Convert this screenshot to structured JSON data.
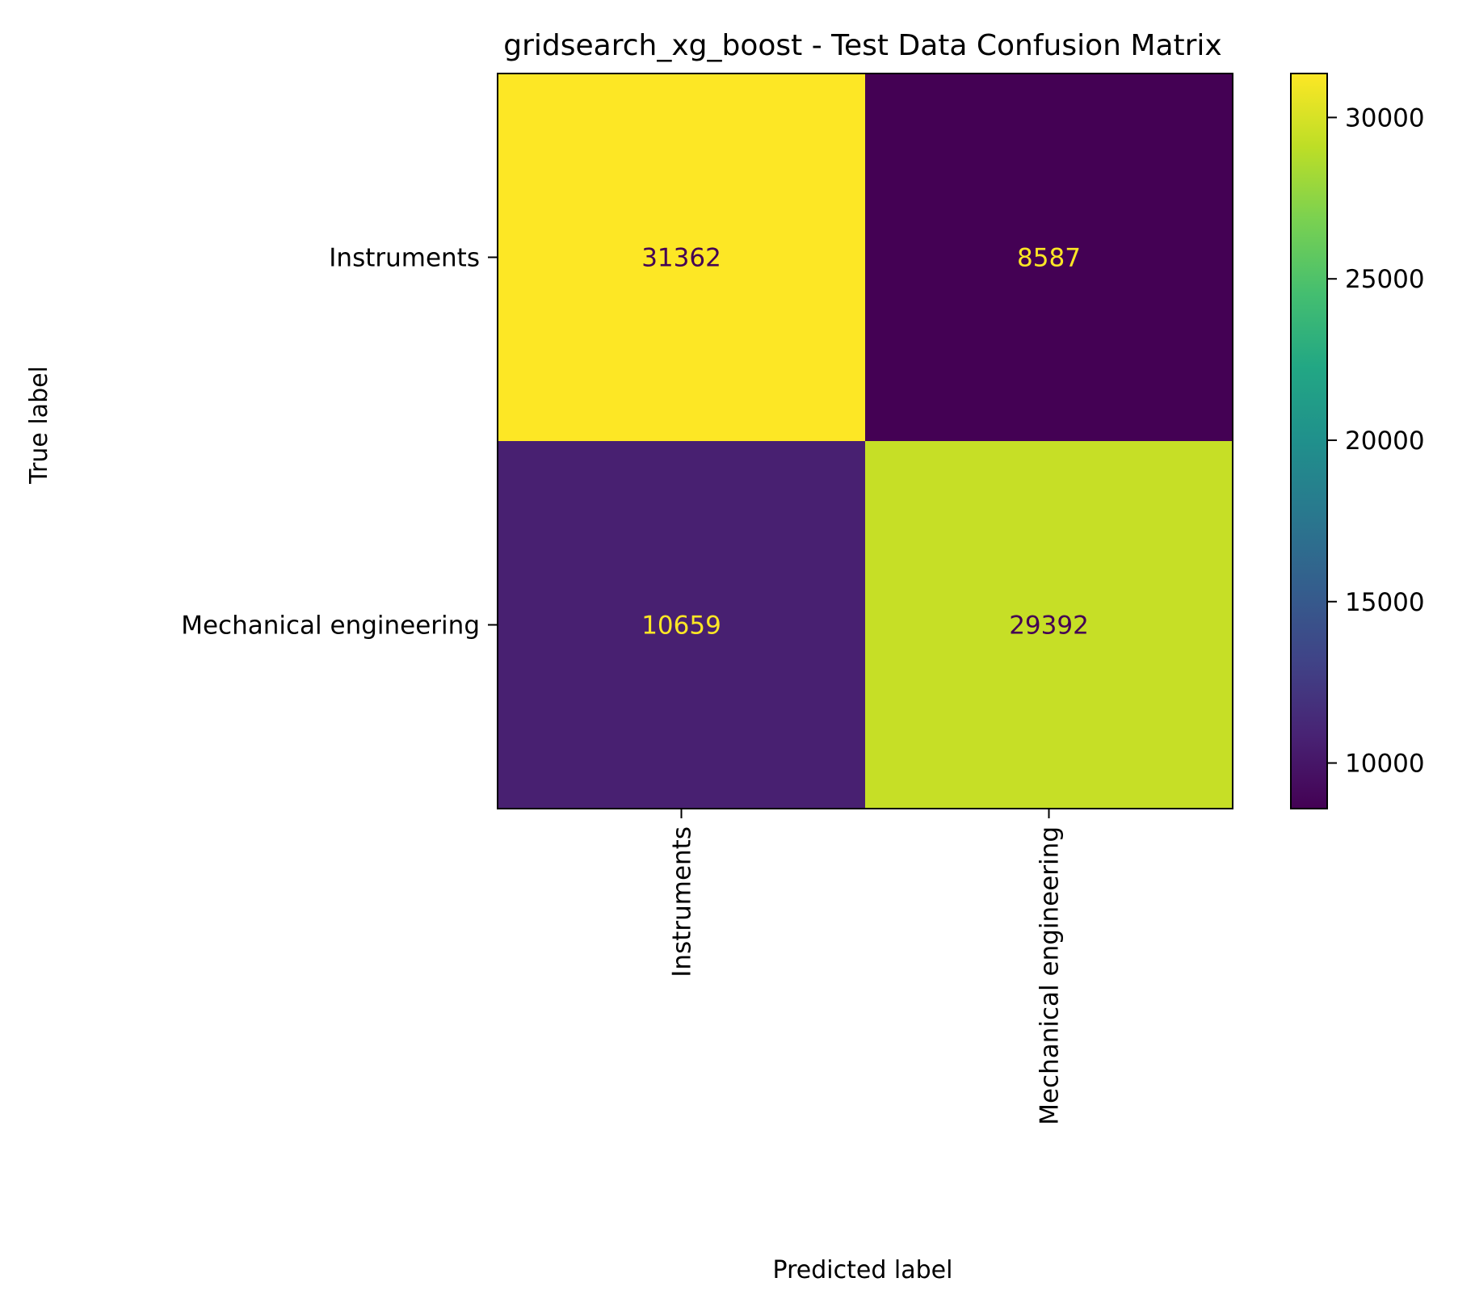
{
  "chart_data": {
    "type": "heatmap",
    "title": "gridsearch_xg_boost - Test Data Confusion Matrix",
    "xlabel": "Predicted label",
    "ylabel": "True label",
    "row_labels": [
      "Instruments",
      "Mechanical engineering"
    ],
    "col_labels": [
      "Instruments",
      "Mechanical engineering"
    ],
    "matrix": [
      [
        31362,
        8587
      ],
      [
        10659,
        29392
      ]
    ],
    "colorbar": {
      "colormap": "viridis",
      "vmin": 8587,
      "vmax": 31362,
      "ticks": [
        10000,
        15000,
        20000,
        25000,
        30000
      ],
      "tick_labels": [
        "10000",
        "15000",
        "20000",
        "25000",
        "30000"
      ]
    },
    "grid": false
  }
}
